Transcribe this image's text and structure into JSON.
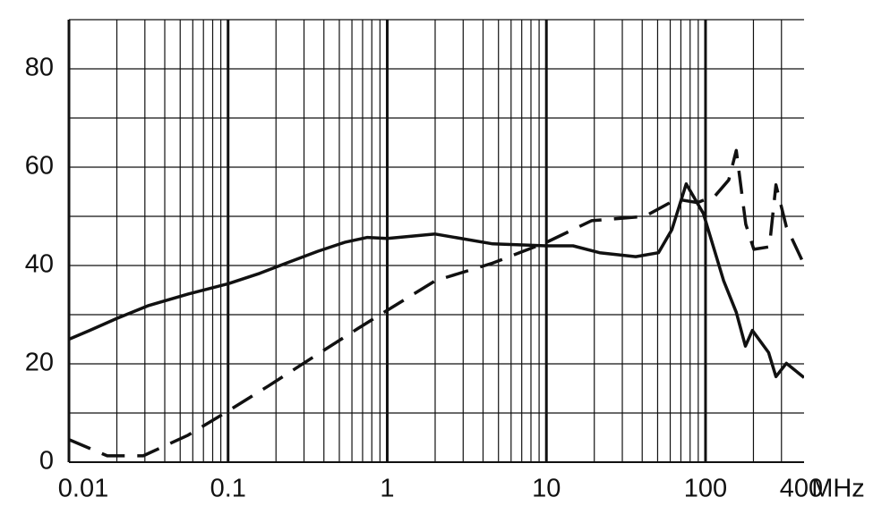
{
  "chart_data": {
    "type": "line",
    "xlabel": "MHz",
    "xscale": "log",
    "xlim": [
      0.01,
      416
    ],
    "ylim": [
      0,
      90
    ],
    "xticks": [
      0.01,
      0.1,
      1,
      10,
      100,
      400
    ],
    "yticks": [
      0,
      20,
      40,
      60,
      80
    ],
    "x_minor_ticks": [
      0.02,
      0.03,
      0.04,
      0.05,
      0.06,
      0.07,
      0.08,
      0.09,
      0.2,
      0.3,
      0.4,
      0.5,
      0.6,
      0.7,
      0.8,
      0.9,
      2,
      3,
      4,
      5,
      6,
      7,
      8,
      9,
      20,
      30,
      40,
      50,
      60,
      70,
      80,
      90,
      200,
      300
    ],
    "y_minor_ticks": [
      10,
      30,
      50,
      70,
      90
    ],
    "grid": true,
    "series": [
      {
        "color": "#111111",
        "dash": false,
        "x": [
          0.01,
          0.0135,
          0.0199,
          0.0313,
          0.0561,
          0.1,
          0.158,
          0.233,
          0.366,
          0.54,
          0.75,
          1,
          2.0,
          4.6,
          10,
          14.7,
          21.6,
          36.4,
          50.6,
          61.5,
          75.6,
          96.9,
          130,
          156,
          178,
          197,
          249,
          277,
          322,
          416
        ],
        "values": [
          25.0,
          26.8,
          29.2,
          31.8,
          34.2,
          36.3,
          38.4,
          40.5,
          42.9,
          44.7,
          45.7,
          45.5,
          46.4,
          44.4,
          44.0,
          44.0,
          42.6,
          41.8,
          42.6,
          47.3,
          56.6,
          50.6,
          36.9,
          30.5,
          23.6,
          26.8,
          22.3,
          17.4,
          20.1,
          17.2
        ]
      },
      {
        "color": "#111111",
        "dash": true,
        "x": [
          0.01,
          0.0174,
          0.0293,
          0.0561,
          0.1,
          0.179,
          0.344,
          0.656,
          1,
          2.0,
          4.6,
          10,
          19.2,
          41.6,
          65.6,
          89.0,
          115,
          140,
          156,
          179,
          201,
          252,
          277,
          322,
          416
        ],
        "values": [
          4.6,
          1.3,
          1.3,
          5.5,
          10.4,
          15.5,
          21.4,
          27.2,
          30.9,
          36.9,
          40.5,
          44.7,
          49.1,
          50.0,
          53.5,
          52.8,
          54.2,
          57.4,
          63.4,
          48.4,
          43.3,
          43.8,
          56.4,
          47.9,
          40.2
        ]
      }
    ]
  }
}
